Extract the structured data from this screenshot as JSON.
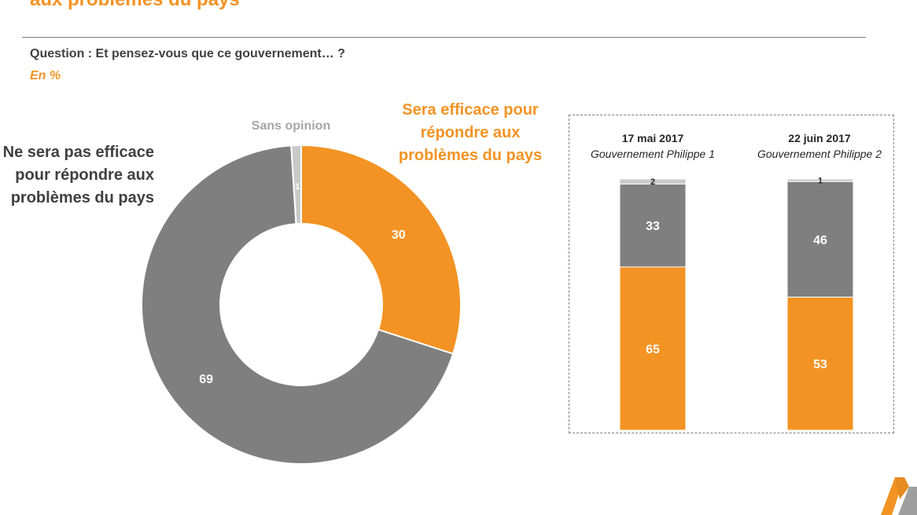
{
  "header": {
    "title": "aux problèmes du pays",
    "question": "Question : Et pensez-vous que ce gouvernement… ?",
    "unit": "En %"
  },
  "colors": {
    "orange": "#f39323",
    "gray": "#7f7f7f",
    "light_gray": "#c9c9c9",
    "dark_text": "#404040"
  },
  "chart_data": [
    {
      "type": "pie",
      "variant": "donut",
      "categories": [
        "Sera efficace pour répondre aux problèmes du pays",
        "Ne sera pas efficace pour répondre aux problèmes du pays",
        "Sans opinion"
      ],
      "values": [
        30,
        69,
        1
      ],
      "labels": {
        "positive": "Sera efficace pour répondre aux problèmes du pays",
        "negative": "Ne sera pas efficace pour répondre aux problèmes du pays",
        "no_opinion": "Sans opinion"
      }
    },
    {
      "type": "bar",
      "stacked": true,
      "categories": [
        {
          "date": "17 mai 2017",
          "subtitle": "Gouvernement Philippe 1"
        },
        {
          "date": "22 juin 2017",
          "subtitle": "Gouvernement Philippe 2"
        }
      ],
      "series": [
        {
          "values": [
            65,
            53
          ]
        },
        {
          "values": [
            33,
            46
          ]
        },
        {
          "values": [
            2,
            1
          ]
        }
      ]
    }
  ]
}
